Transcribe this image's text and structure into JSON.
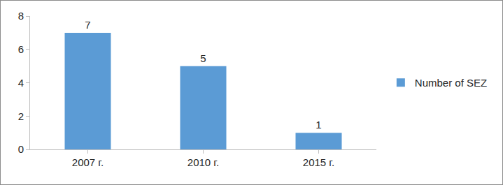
{
  "chart_data": {
    "type": "bar",
    "categories": [
      "2007 г.",
      "2010 г.",
      "2015 г."
    ],
    "series": [
      {
        "name": "Number of SEZ",
        "color": "#5b9bd5",
        "values": [
          7,
          5,
          1
        ]
      }
    ],
    "ylim": [
      0,
      8
    ],
    "yticks": [
      0,
      2,
      4,
      6,
      8
    ],
    "grid": false,
    "data_labels": true,
    "legend": "right"
  }
}
